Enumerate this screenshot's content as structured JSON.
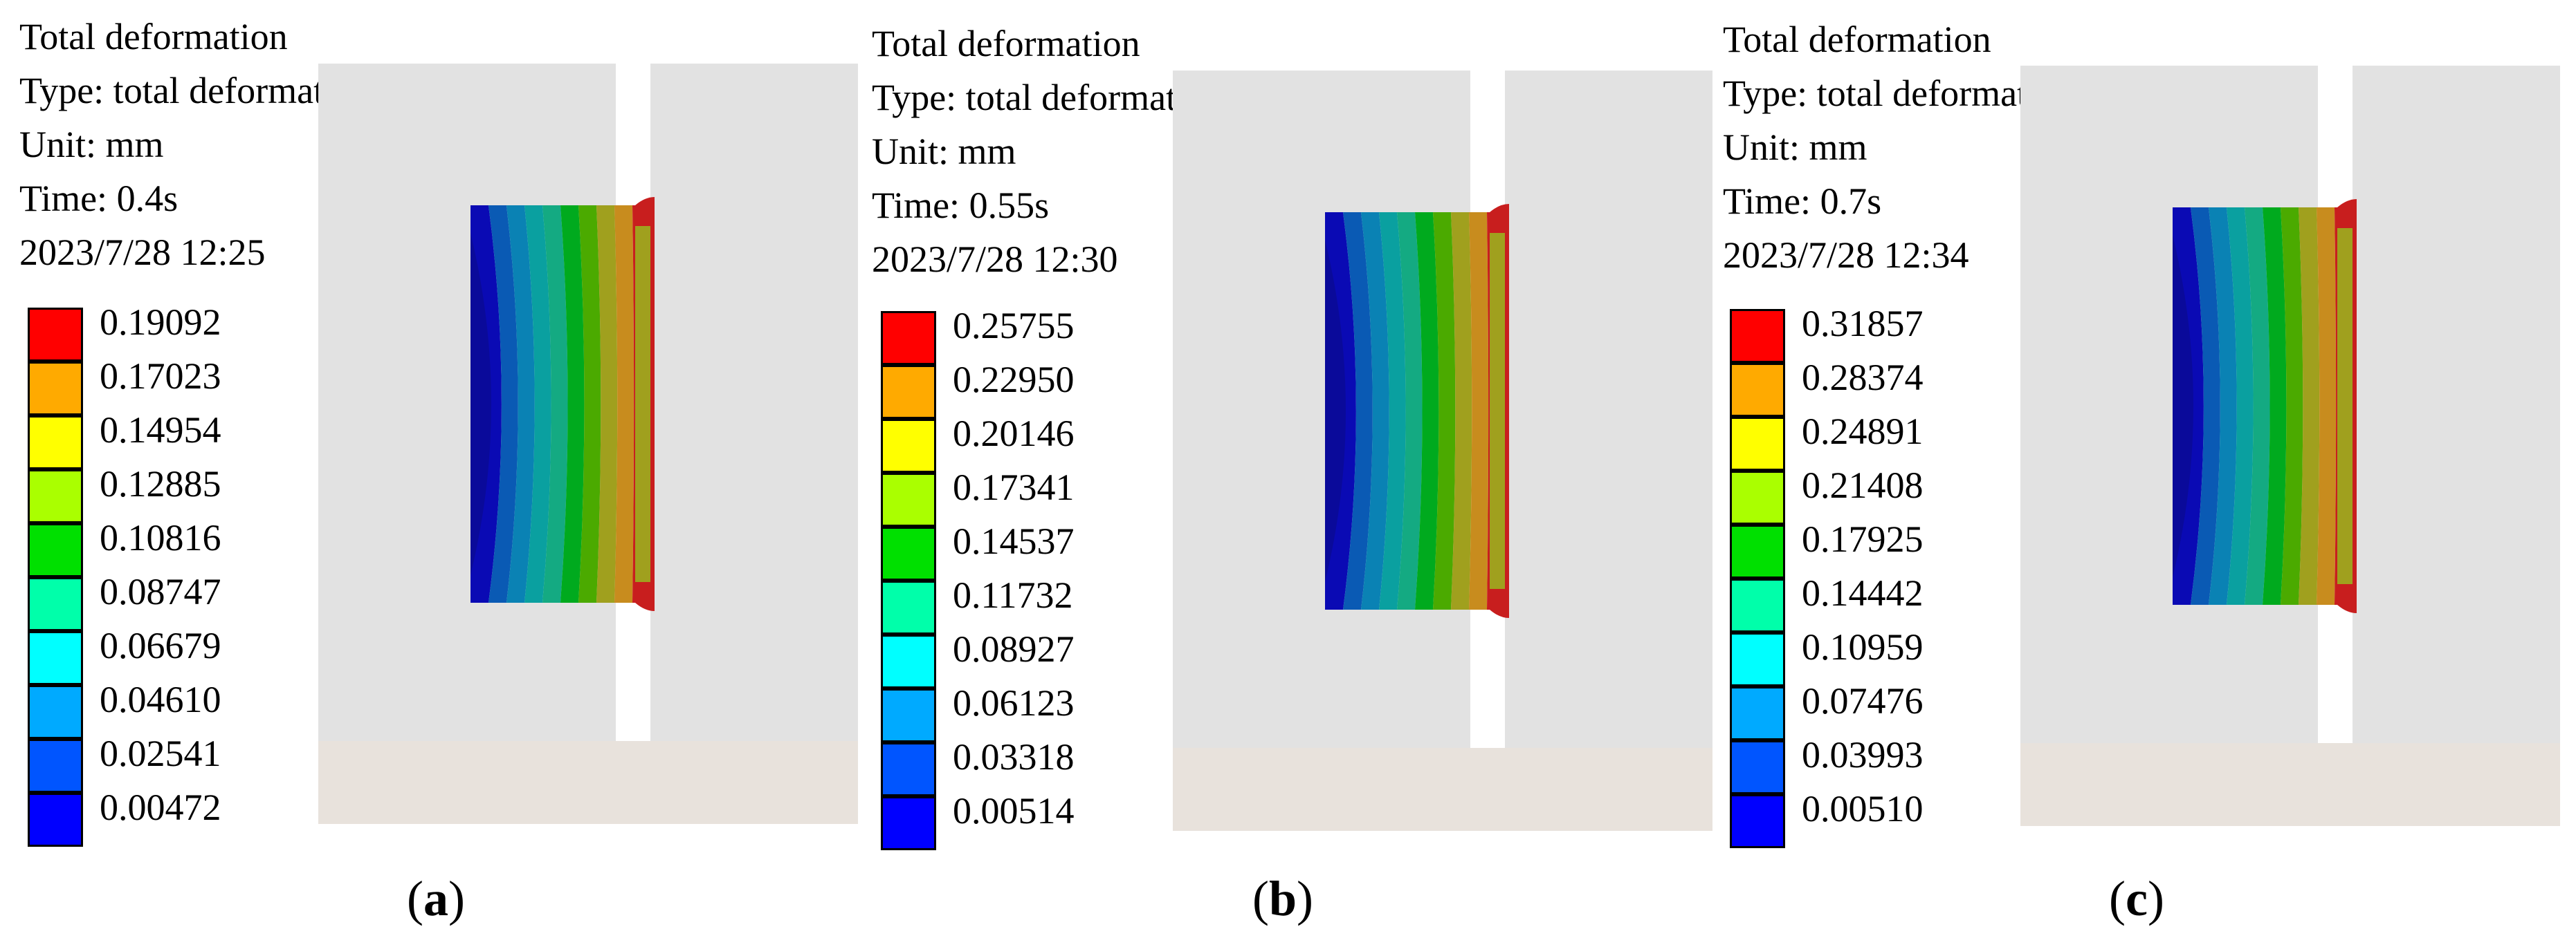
{
  "panels": [
    {
      "header": {
        "title": "Total deformation",
        "type_line": "Type: total deformation",
        "unit_line": "Unit: mm",
        "time_line": "Time: 0.4s",
        "date_line": "2023/7/28  12:25"
      },
      "legend_values": [
        "0.19092",
        "0.17023",
        "0.14954",
        "0.12885",
        "0.10816",
        "0.08747",
        "0.06679",
        "0.04610",
        "0.02541",
        "0.00472"
      ],
      "caption_open": "(",
      "caption_letter": "a",
      "caption_close": ")"
    },
    {
      "header": {
        "title": "Total deformation",
        "type_line": "Type: total deformation",
        "unit_line": "Unit: mm",
        "time_line": "Time: 0.55s",
        "date_line": "2023/7/28  12:30"
      },
      "legend_values": [
        "0.25755",
        "0.22950",
        "0.20146",
        "0.17341",
        "0.14537",
        "0.11732",
        "0.08927",
        "0.06123",
        "0.03318",
        "0.00514"
      ],
      "caption_open": "(",
      "caption_letter": "b",
      "caption_close": ")"
    },
    {
      "header": {
        "title": "Total deformation",
        "type_line": "Type: total deformation",
        "unit_line": "Unit: mm",
        "time_line": "Time: 0.7s",
        "date_line": "2023/7/28  12:34"
      },
      "legend_values": [
        "0.31857",
        "0.28374",
        "0.24891",
        "0.21408",
        "0.17925",
        "0.14442",
        "0.10959",
        "0.07476",
        "0.03993",
        "0.00510"
      ],
      "caption_open": "(",
      "caption_letter": "c",
      "caption_close": ")"
    }
  ],
  "colors": {
    "legend_scale": [
      "#FF0000",
      "#FFAA00",
      "#FFFF00",
      "#AAFF00",
      "#00E000",
      "#00FFAA",
      "#00FFFF",
      "#00AAFF",
      "#0055FF",
      "#0000FF"
    ],
    "contour_bands": [
      "#0A0AB4",
      "#0A5AB4",
      "#0A82B4",
      "#0AA0A0",
      "#14AA82",
      "#00AA1E",
      "#4BAA00",
      "#A0A01E",
      "#C88C1E",
      "#C81E1E"
    ],
    "background_block": "#E2E2E2",
    "base_block": "#E8E2DC"
  }
}
